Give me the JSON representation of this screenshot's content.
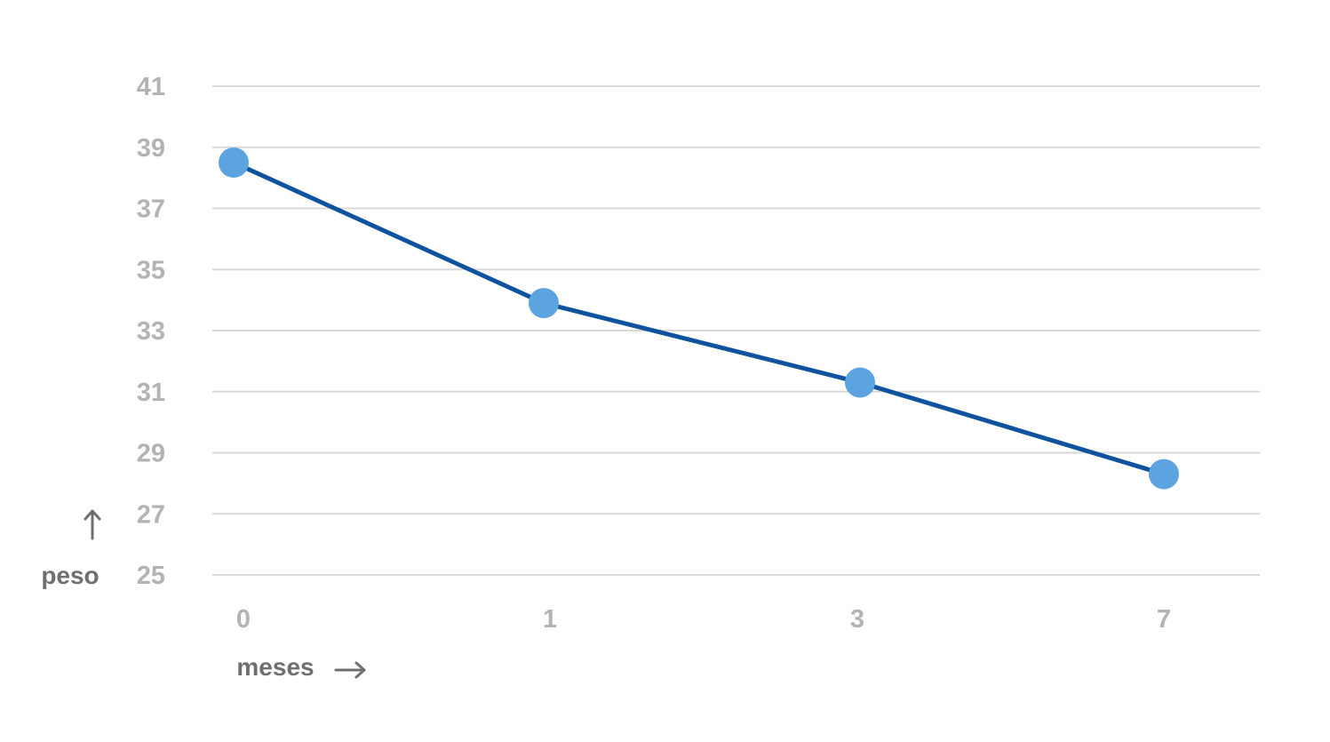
{
  "chart_data": {
    "type": "line",
    "x": [
      "0",
      "1",
      "3",
      "7"
    ],
    "values": [
      38.5,
      33.9,
      31.3,
      28.3
    ],
    "yticks": [
      41,
      39,
      37,
      35,
      33,
      31,
      29,
      27,
      25
    ],
    "ylim": [
      25,
      41
    ],
    "xlabel": "meses",
    "ylabel": "peso",
    "grid": true,
    "colors": {
      "line": "#0f539e",
      "marker": "#5ba4e0",
      "grid": "#d9d9d9",
      "tick_text": "#b3b3b3",
      "axis_title": "#6f6f6f"
    }
  }
}
